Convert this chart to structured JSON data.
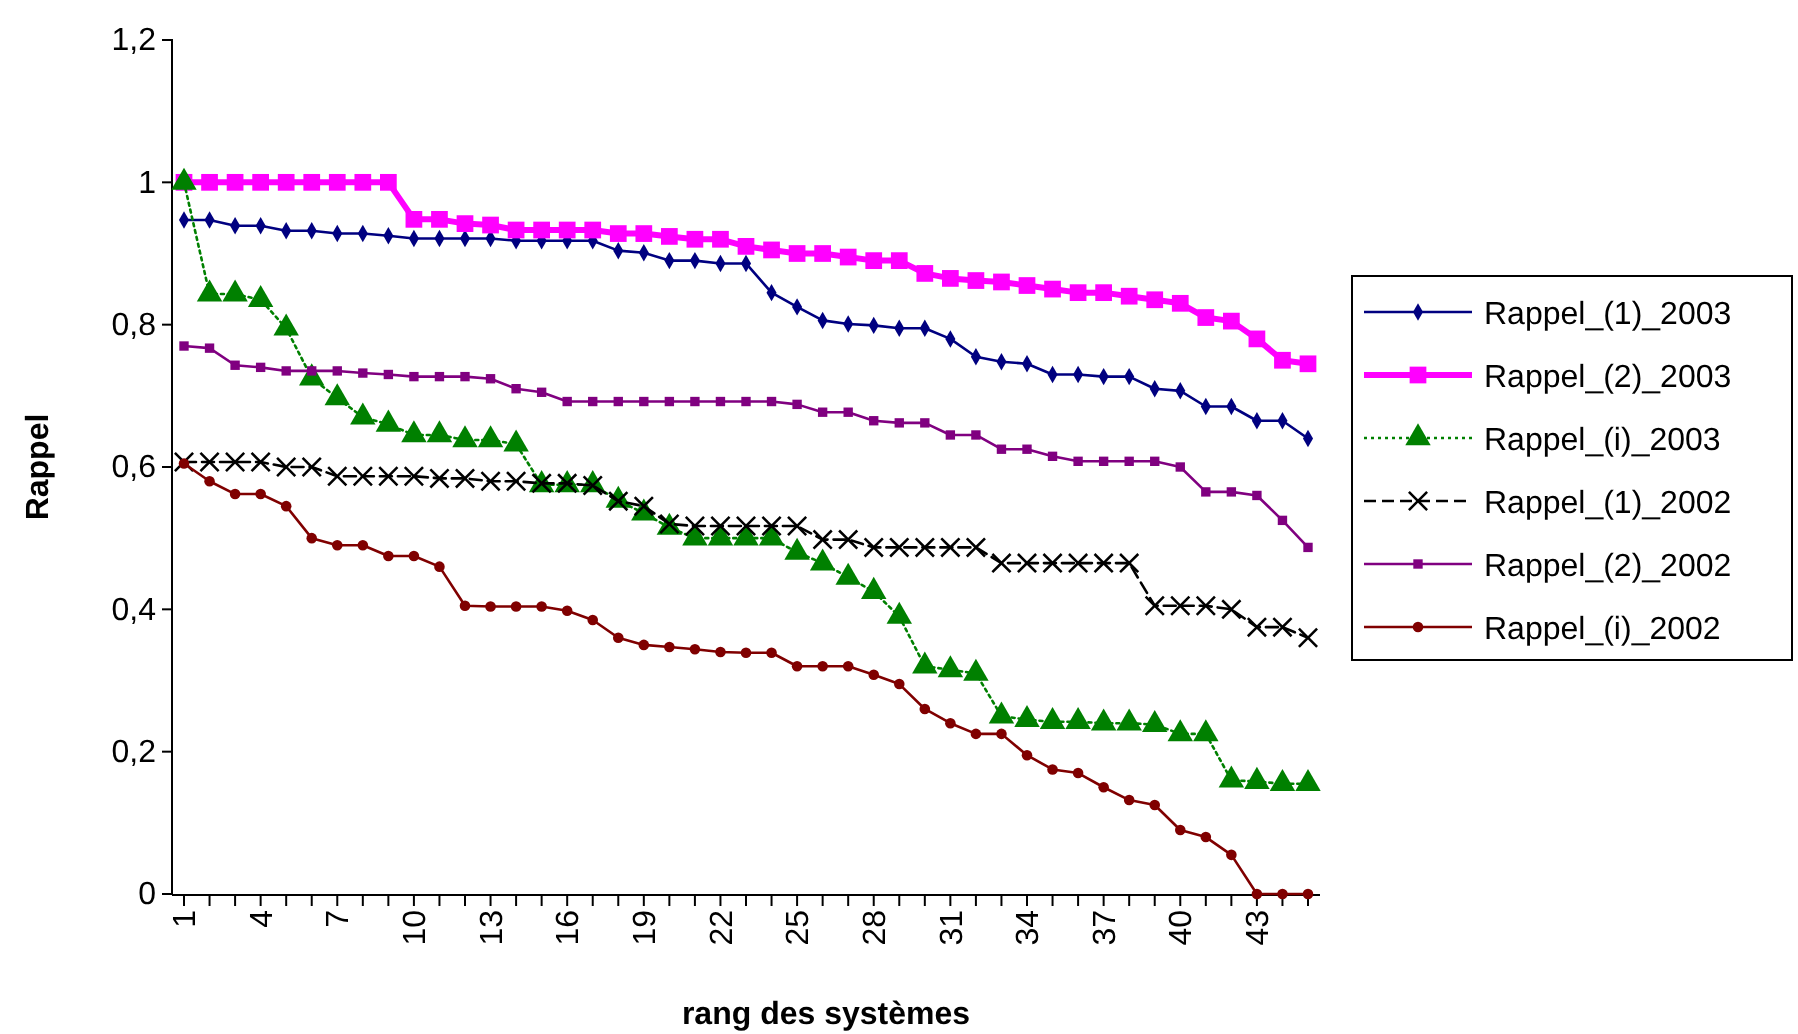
{
  "chart_data": {
    "type": "line",
    "xlabel": "rang des systèmes",
    "ylabel": "Rappel",
    "categories": [
      "1",
      null,
      null,
      "4",
      null,
      null,
      "7",
      null,
      null,
      "10",
      null,
      null,
      "13",
      null,
      null,
      "16",
      null,
      null,
      "19",
      null,
      null,
      "22",
      null,
      null,
      "25",
      null,
      null,
      "28",
      null,
      null,
      "31",
      null,
      null,
      "34",
      null,
      null,
      "37",
      null,
      null,
      "40",
      null,
      null,
      "43",
      null,
      null
    ],
    "ylim": [
      0,
      1.2
    ],
    "yticks": [
      0,
      {
        "value": 0.2,
        "label": "0,2"
      },
      {
        "value": 0.4,
        "label": "0,4"
      },
      {
        "value": 0.6,
        "label": "0,6"
      },
      {
        "value": 0.8,
        "label": "0,8"
      },
      1,
      {
        "value": 1.2,
        "label": "1,2"
      }
    ],
    "grid": false,
    "legend": "right",
    "series": [
      {
        "name": "Rappel_(1)_2003",
        "color": "#000080",
        "marker": "diamond",
        "line_style": "solid",
        "values": [
          0.947,
          0.947,
          0.939,
          0.939,
          0.932,
          0.932,
          0.928,
          0.928,
          0.925,
          0.921,
          0.921,
          0.921,
          0.921,
          0.918,
          0.918,
          0.918,
          0.918,
          0.904,
          0.901,
          0.89,
          0.89,
          0.886,
          0.886,
          0.845,
          0.825,
          0.806,
          0.801,
          0.799,
          0.795,
          0.795,
          0.78,
          0.755,
          0.748,
          0.745,
          0.73,
          0.73,
          0.727,
          0.727,
          0.71,
          0.707,
          0.685,
          0.685,
          0.665,
          0.665,
          0.64
        ]
      },
      {
        "name": "Rappel_(2)_2003",
        "color": "#ff00ff",
        "marker": "square",
        "line_style": "solid",
        "values": [
          1,
          1,
          1,
          1,
          1,
          1,
          1,
          1,
          1,
          0.948,
          0.948,
          0.942,
          0.94,
          0.933,
          0.933,
          0.933,
          0.933,
          0.928,
          0.928,
          0.924,
          0.92,
          0.92,
          0.91,
          0.905,
          0.9,
          0.9,
          0.895,
          0.89,
          0.89,
          0.872,
          0.865,
          0.862,
          0.86,
          0.855,
          0.85,
          0.845,
          0.845,
          0.84,
          0.835,
          0.83,
          0.81,
          0.805,
          0.78,
          0.75,
          0.745
        ]
      },
      {
        "name": "Rappel_(i)_2003",
        "color": "#008000",
        "marker": "triangle",
        "line_style": "dotted",
        "values": [
          1,
          0.843,
          0.843,
          0.835,
          0.795,
          0.725,
          0.697,
          0.67,
          0.66,
          0.645,
          0.645,
          0.638,
          0.638,
          0.632,
          0.575,
          0.575,
          0.575,
          0.553,
          0.535,
          0.515,
          0.5,
          0.5,
          0.5,
          0.5,
          0.48,
          0.465,
          0.445,
          0.425,
          0.39,
          0.32,
          0.315,
          0.31,
          0.25,
          0.245,
          0.242,
          0.242,
          0.24,
          0.24,
          0.238,
          0.225,
          0.225,
          0.16,
          0.158,
          0.155,
          0.155
        ]
      },
      {
        "name": "Rappel_(1)_2002",
        "color": "#000000",
        "marker": "cross",
        "line_style": "dashed",
        "values": [
          0.607,
          0.607,
          0.607,
          0.607,
          0.6,
          0.6,
          0.587,
          0.587,
          0.587,
          0.587,
          0.584,
          0.584,
          0.58,
          0.58,
          0.577,
          0.577,
          0.574,
          0.552,
          0.545,
          0.52,
          0.517,
          0.517,
          0.517,
          0.517,
          0.517,
          0.498,
          0.498,
          0.487,
          0.487,
          0.487,
          0.487,
          0.487,
          0.465,
          0.465,
          0.465,
          0.465,
          0.465,
          0.465,
          0.405,
          0.405,
          0.405,
          0.4,
          0.375,
          0.375,
          0.36
        ]
      },
      {
        "name": "Rappel_(2)_2002",
        "color": "#800080",
        "marker": "square",
        "line_style": "solid",
        "values": [
          0.77,
          0.767,
          0.743,
          0.74,
          0.735,
          0.735,
          0.735,
          0.732,
          0.73,
          0.727,
          0.727,
          0.727,
          0.724,
          0.71,
          0.705,
          0.692,
          0.692,
          0.692,
          0.692,
          0.692,
          0.692,
          0.692,
          0.692,
          0.692,
          0.688,
          0.677,
          0.677,
          0.665,
          0.662,
          0.662,
          0.645,
          0.645,
          0.625,
          0.625,
          0.615,
          0.608,
          0.608,
          0.608,
          0.608,
          0.6,
          0.565,
          0.565,
          0.56,
          0.525,
          0.487
        ]
      },
      {
        "name": "Rappel_(i)_2002",
        "color": "#800000",
        "marker": "circle",
        "line_style": "solid",
        "values": [
          0.605,
          0.58,
          0.562,
          0.562,
          0.545,
          0.5,
          0.49,
          0.49,
          0.475,
          0.475,
          0.46,
          0.405,
          0.404,
          0.404,
          0.404,
          0.398,
          0.385,
          0.36,
          0.35,
          0.347,
          0.344,
          0.34,
          0.339,
          0.339,
          0.32,
          0.32,
          0.32,
          0.308,
          0.295,
          0.26,
          0.24,
          0.225,
          0.225,
          0.195,
          0.175,
          0.17,
          0.15,
          0.132,
          0.125,
          0.09,
          0.08,
          0.055,
          0,
          0,
          0
        ]
      }
    ]
  }
}
